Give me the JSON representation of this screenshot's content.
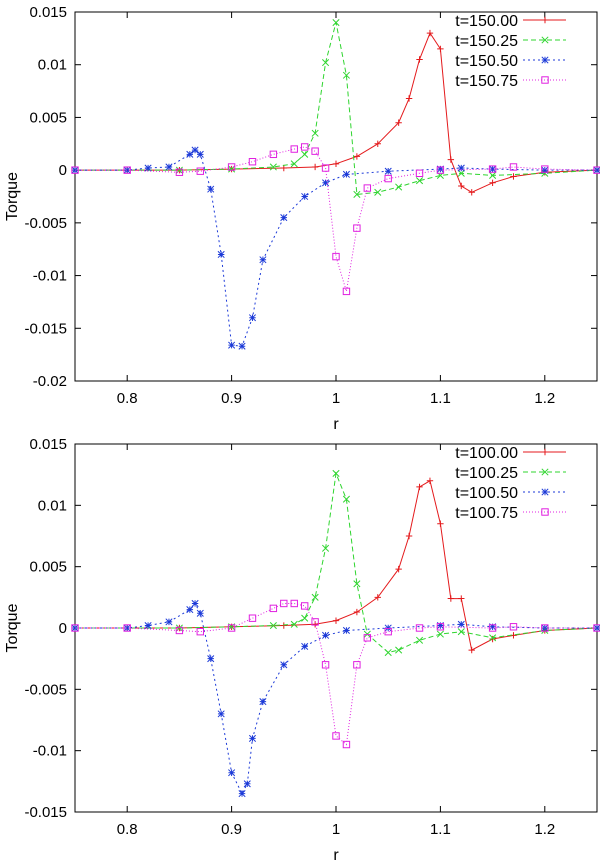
{
  "chart_data": [
    {
      "type": "line",
      "title": "",
      "xlabel": "r",
      "ylabel": "Torque",
      "xlim": [
        0.75,
        1.25
      ],
      "ylim": [
        -0.02,
        0.015
      ],
      "xticks": [
        0.8,
        0.9,
        1.0,
        1.1,
        1.2
      ],
      "xtick_labels": [
        "0.8",
        "0.9",
        "1",
        "1.1",
        "1.2"
      ],
      "yticks": [
        0.015,
        0.01,
        0.005,
        0,
        -0.005,
        -0.01,
        -0.015,
        -0.02
      ],
      "ytick_labels": [
        "0.015",
        "0.01",
        "0.005",
        "0",
        "-0.005",
        "-0.01",
        "-0.015",
        "-0.02"
      ],
      "legend_position": "top-right",
      "series": [
        {
          "name": "t=150.00",
          "color": "#e41a1c",
          "marker": "plus",
          "dash": "",
          "x": [
            0.75,
            0.8,
            0.85,
            0.9,
            0.95,
            0.98,
            1.0,
            1.02,
            1.04,
            1.06,
            1.07,
            1.08,
            1.09,
            1.1,
            1.11,
            1.12,
            1.13,
            1.15,
            1.17,
            1.2,
            1.25
          ],
          "y": [
            0,
            0,
            0,
            0.0001,
            0.0002,
            0.0003,
            0.0006,
            0.0013,
            0.0025,
            0.0045,
            0.0068,
            0.0105,
            0.013,
            0.0115,
            0.001,
            -0.0015,
            -0.0021,
            -0.0012,
            -0.0006,
            -0.0002,
            0
          ]
        },
        {
          "name": "t=150.25",
          "color": "#2fd52f",
          "marker": "x",
          "dash": "5,3",
          "x": [
            0.75,
            0.85,
            0.9,
            0.94,
            0.96,
            0.97,
            0.98,
            0.99,
            1.0,
            1.01,
            1.02,
            1.04,
            1.06,
            1.08,
            1.1,
            1.12,
            1.15,
            1.2,
            1.25
          ],
          "y": [
            0,
            0,
            0.0001,
            0.0003,
            0.0006,
            0.0015,
            0.0035,
            0.0102,
            0.014,
            0.009,
            -0.0023,
            -0.0021,
            -0.0016,
            -0.001,
            -0.0005,
            -0.0003,
            -0.0005,
            -0.0003,
            0
          ]
        },
        {
          "name": "t=150.50",
          "color": "#1c3ad8",
          "marker": "star",
          "dash": "2,3",
          "x": [
            0.75,
            0.8,
            0.82,
            0.84,
            0.86,
            0.865,
            0.87,
            0.88,
            0.89,
            0.9,
            0.91,
            0.92,
            0.93,
            0.95,
            0.97,
            0.99,
            1.01,
            1.05,
            1.1,
            1.12,
            1.15,
            1.2,
            1.25
          ],
          "y": [
            0,
            0,
            0.0002,
            0.0003,
            0.0015,
            0.0019,
            0.0015,
            -0.0018,
            -0.008,
            -0.0166,
            -0.0167,
            -0.014,
            -0.0085,
            -0.0045,
            -0.0025,
            -0.0012,
            -0.0004,
            -0.0001,
            0.0001,
            0.0002,
            0.0001,
            0,
            0
          ]
        },
        {
          "name": "t=150.75",
          "color": "#e020e0",
          "marker": "square",
          "dash": "1,2",
          "x": [
            0.75,
            0.8,
            0.85,
            0.87,
            0.9,
            0.92,
            0.94,
            0.96,
            0.97,
            0.98,
            0.99,
            1.0,
            1.01,
            1.02,
            1.03,
            1.05,
            1.08,
            1.1,
            1.15,
            1.17,
            1.2,
            1.25
          ],
          "y": [
            0,
            0,
            -0.0002,
            -0.0001,
            0.0003,
            0.0008,
            0.0015,
            0.002,
            0.0022,
            0.0018,
            0.0002,
            -0.0082,
            -0.0115,
            -0.0055,
            -0.0017,
            -0.0008,
            -0.0003,
            0,
            0.0001,
            0.0003,
            0.0001,
            0
          ]
        }
      ]
    },
    {
      "type": "line",
      "title": "",
      "xlabel": "r",
      "ylabel": "Torque",
      "xlim": [
        0.75,
        1.25
      ],
      "ylim": [
        -0.015,
        0.015
      ],
      "xticks": [
        0.8,
        0.9,
        1.0,
        1.1,
        1.2
      ],
      "xtick_labels": [
        "0.8",
        "0.9",
        "1",
        "1.1",
        "1.2"
      ],
      "yticks": [
        0.015,
        0.01,
        0.005,
        0,
        -0.005,
        -0.01,
        -0.015
      ],
      "ytick_labels": [
        "0.015",
        "0.01",
        "0.005",
        "0",
        "-0.005",
        "-0.01",
        "-0.015"
      ],
      "legend_position": "top-right",
      "series": [
        {
          "name": "t=100.00",
          "color": "#e41a1c",
          "marker": "plus",
          "dash": "",
          "x": [
            0.75,
            0.8,
            0.85,
            0.9,
            0.95,
            0.98,
            1.0,
            1.02,
            1.04,
            1.06,
            1.07,
            1.08,
            1.09,
            1.1,
            1.11,
            1.12,
            1.13,
            1.15,
            1.17,
            1.2,
            1.25
          ],
          "y": [
            0,
            0,
            0,
            0.0001,
            0.0002,
            0.0003,
            0.0006,
            0.0013,
            0.0025,
            0.0048,
            0.0075,
            0.0115,
            0.012,
            0.0085,
            0.0024,
            0.0024,
            -0.0018,
            -0.0009,
            -0.0006,
            -0.0002,
            0
          ]
        },
        {
          "name": "t=100.25",
          "color": "#2fd52f",
          "marker": "x",
          "dash": "5,3",
          "x": [
            0.75,
            0.85,
            0.9,
            0.94,
            0.96,
            0.97,
            0.98,
            0.99,
            1.0,
            1.01,
            1.02,
            1.03,
            1.05,
            1.06,
            1.08,
            1.1,
            1.12,
            1.15,
            1.2,
            1.25
          ],
          "y": [
            0,
            0,
            0.0001,
            0.0002,
            0.0003,
            0.0008,
            0.0025,
            0.0065,
            0.0126,
            0.0105,
            0.0036,
            -0.0005,
            -0.002,
            -0.0018,
            -0.001,
            -0.0005,
            -0.0003,
            -0.0008,
            -0.0002,
            0
          ]
        },
        {
          "name": "t=100.50",
          "color": "#1c3ad8",
          "marker": "star",
          "dash": "2,3",
          "x": [
            0.75,
            0.8,
            0.82,
            0.84,
            0.86,
            0.865,
            0.87,
            0.88,
            0.89,
            0.9,
            0.91,
            0.915,
            0.92,
            0.93,
            0.95,
            0.97,
            0.99,
            1.01,
            1.05,
            1.1,
            1.12,
            1.15,
            1.2,
            1.25
          ],
          "y": [
            0,
            0,
            0.0002,
            0.0005,
            0.0015,
            0.002,
            0.0012,
            -0.0025,
            -0.007,
            -0.0118,
            -0.0135,
            -0.0127,
            -0.009,
            -0.006,
            -0.003,
            -0.0015,
            -0.0006,
            -0.0002,
            0,
            0.0002,
            0.0003,
            0.0001,
            0,
            0
          ]
        },
        {
          "name": "t=100.75",
          "color": "#e020e0",
          "marker": "square",
          "dash": "1,2",
          "x": [
            0.75,
            0.8,
            0.85,
            0.87,
            0.9,
            0.92,
            0.94,
            0.95,
            0.96,
            0.97,
            0.98,
            0.99,
            1.0,
            1.01,
            1.02,
            1.03,
            1.05,
            1.08,
            1.1,
            1.15,
            1.17,
            1.2,
            1.25
          ],
          "y": [
            0,
            0,
            -0.0002,
            -0.0003,
            0,
            0.0008,
            0.0016,
            0.002,
            0.002,
            0.0018,
            0.0005,
            -0.003,
            -0.0088,
            -0.0095,
            -0.003,
            -0.0008,
            -0.0003,
            0,
            0.0001,
            0,
            0.0001,
            0,
            0
          ]
        }
      ]
    }
  ]
}
